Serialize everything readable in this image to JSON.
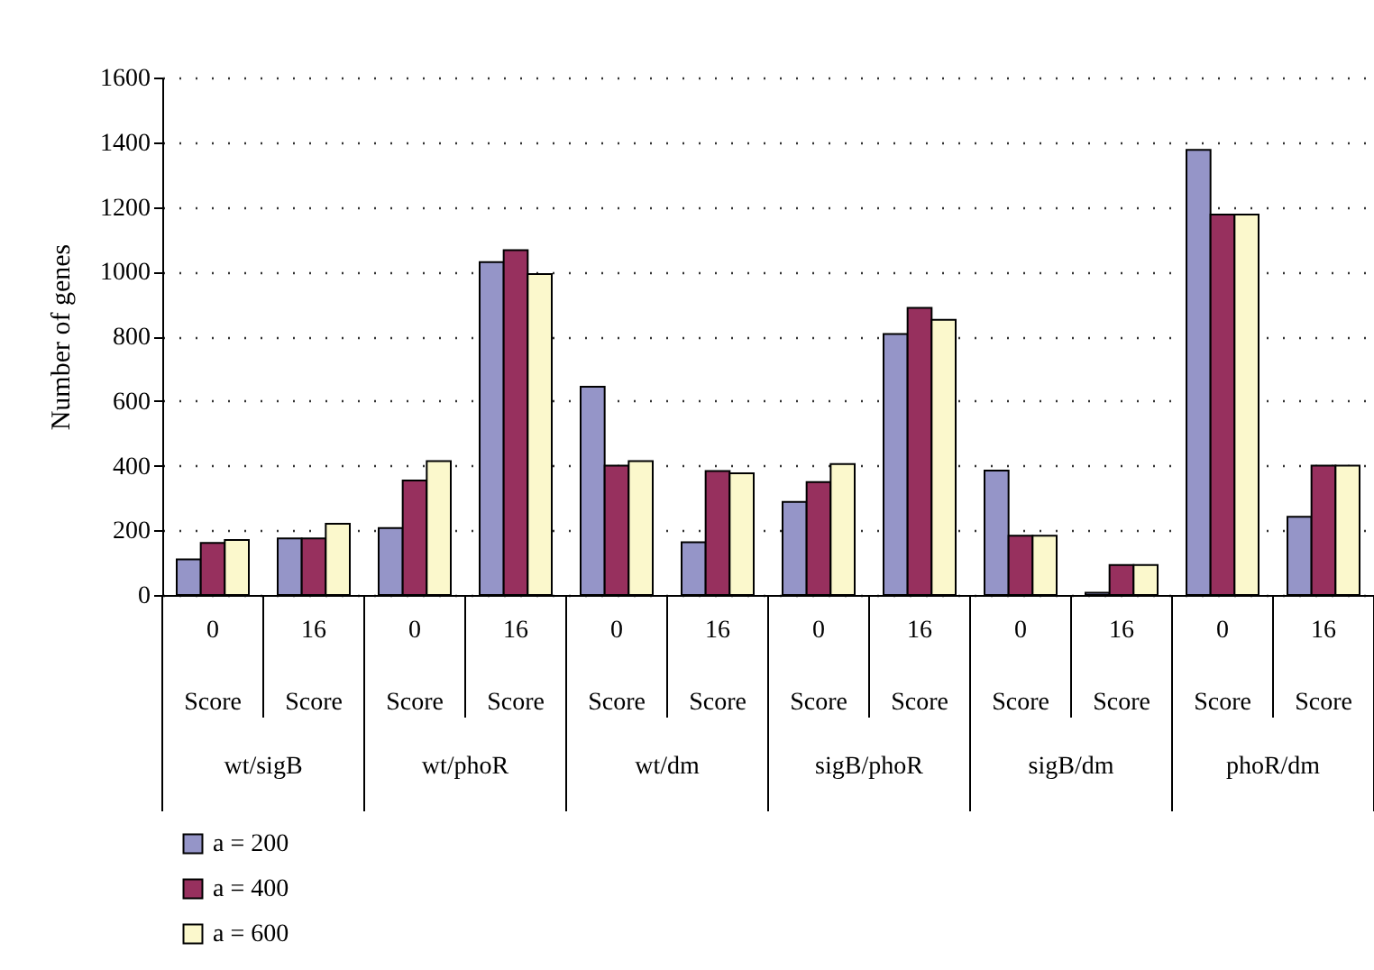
{
  "chart_data": {
    "type": "bar",
    "ylabel": "Number of genes",
    "categories": [
      "0 Score",
      "16 Score",
      "0 Score",
      "16 Score",
      "0 Score",
      "16 Score",
      "0 Score",
      "16 Score",
      "0 Score",
      "16 Score",
      "0 Score",
      "16 Score"
    ],
    "annotations": [
      "wt/sigB",
      "wt/phoR",
      "wt/dm",
      "sigB/phoR",
      "sigB/dm",
      "phoR/dm"
    ],
    "series": [
      {
        "name": "a = 200",
        "color": "#9595c8",
        "values": [
          110,
          175,
          207,
          1029,
          644,
          163,
          288,
          807,
          385,
          7,
          1376,
          242
        ]
      },
      {
        "name": "a = 400",
        "color": "#97305e",
        "values": [
          161,
          175,
          354,
          1066,
          400,
          383,
          349,
          888,
          183,
          93,
          1176,
          400
        ]
      },
      {
        "name": "a = 600",
        "color": "#fbf8cc",
        "values": [
          170,
          220,
          414,
          992,
          414,
          376,
          405,
          851,
          183,
          93,
          1176,
          400
        ]
      }
    ],
    "ylim": [
      0,
      1600
    ],
    "yticks": [
      0,
      200,
      400,
      600,
      800,
      1000,
      1200,
      1400,
      1600
    ],
    "grid": "y",
    "legend": "bottom left"
  }
}
